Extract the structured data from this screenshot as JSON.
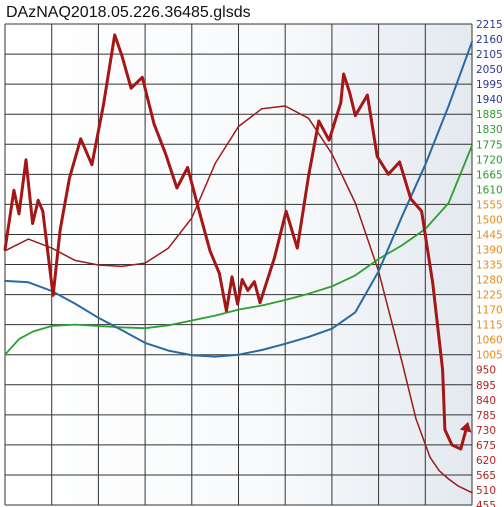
{
  "chart_data": {
    "type": "line",
    "title": "DAzNAQ2018.05.226.36485.glsds",
    "xlabel": "",
    "ylabel": "",
    "ylim": [
      455,
      2215
    ],
    "yticks": [
      2215,
      2160,
      2105,
      2050,
      1995,
      1940,
      1885,
      1830,
      1775,
      1720,
      1665,
      1610,
      1555,
      1500,
      1445,
      1390,
      1335,
      1280,
      1225,
      1170,
      1115,
      1060,
      1005,
      950,
      895,
      840,
      785,
      730,
      675,
      620,
      565,
      510,
      455
    ],
    "ytick_color_bands": [
      {
        "from": 1940,
        "to": 2215,
        "color": "#2b3a8f"
      },
      {
        "from": 1610,
        "to": 1885,
        "color": "#2e9b2e"
      },
      {
        "from": 1005,
        "to": 1555,
        "color": "#e88a1a"
      },
      {
        "from": 455,
        "to": 950,
        "color": "#b51f1f"
      }
    ],
    "xlim": [
      0,
      100
    ],
    "x_gridlines": 10,
    "grid": true,
    "legend": "none",
    "colors": {
      "price": "#a51616",
      "red_curve": "#9b1c1c",
      "blue_curve": "#2a6aa2",
      "green_curve": "#2fa02f",
      "grid": "#333333",
      "background_left": "#ffffff",
      "background_right": "#e8edf2"
    },
    "series": [
      {
        "key": "price",
        "width": 3,
        "arrow": true,
        "x": [
          0,
          1.9,
          3.0,
          4.5,
          5.9,
          7.1,
          8.1,
          10.3,
          11.8,
          13.8,
          16.2,
          18.6,
          21.1,
          23.5,
          25.0,
          27.0,
          29.4,
          31.9,
          34.4,
          36.8,
          39.1,
          41.5,
          43.9,
          45.9,
          47.4,
          48.6,
          49.8,
          50.8,
          52.0,
          53.4,
          54.6,
          57.7,
          60.2,
          62.6,
          65.0,
          67.2,
          69.4,
          71.9,
          72.5,
          73.8,
          75.0,
          77.6,
          79.7,
          82.1,
          84.5,
          86.9,
          89.2,
          91.6,
          93.7,
          94.2,
          95.7,
          97.6,
          98.8
        ],
        "y": [
          1390,
          1607,
          1520,
          1718,
          1485,
          1570,
          1530,
          1222,
          1460,
          1650,
          1795,
          1700,
          1920,
          2175,
          2100,
          1980,
          2020,
          1850,
          1740,
          1615,
          1690,
          1535,
          1385,
          1302,
          1165,
          1290,
          1190,
          1280,
          1240,
          1272,
          1195,
          1360,
          1530,
          1395,
          1660,
          1860,
          1790,
          1927,
          2032,
          1965,
          1880,
          1955,
          1730,
          1665,
          1710,
          1575,
          1530,
          1265,
          950,
          730,
          675,
          660,
          736
        ]
      },
      {
        "key": "red_curve",
        "width": 1.5,
        "arrow": false,
        "x": [
          0,
          5,
          10,
          15,
          20,
          25,
          30,
          35,
          40,
          45,
          50,
          55,
          60,
          65,
          70,
          75,
          80,
          85,
          88,
          91,
          93,
          95,
          97,
          100
        ],
        "y": [
          1385,
          1428,
          1395,
          1350,
          1333,
          1328,
          1340,
          1395,
          1505,
          1705,
          1840,
          1905,
          1915,
          1870,
          1740,
          1560,
          1310,
          980,
          770,
          630,
          580,
          550,
          525,
          500
        ]
      },
      {
        "key": "blue_curve",
        "width": 2,
        "arrow": false,
        "x": [
          0,
          5,
          10,
          15,
          20,
          25,
          30,
          35,
          40,
          45,
          50,
          55,
          60,
          65,
          70,
          75,
          80,
          85,
          90,
          95,
          100
        ],
        "y": [
          1275,
          1270,
          1238,
          1192,
          1140,
          1095,
          1048,
          1020,
          1003,
          998,
          1005,
          1022,
          1045,
          1070,
          1100,
          1160,
          1310,
          1510,
          1700,
          1915,
          2150
        ]
      },
      {
        "key": "green_curve",
        "width": 1.8,
        "arrow": false,
        "x": [
          0,
          3,
          6,
          10,
          15,
          20,
          25,
          30,
          35,
          40,
          45,
          50,
          55,
          60,
          65,
          70,
          75,
          80,
          85,
          90,
          95,
          100
        ],
        "y": [
          1005,
          1062,
          1090,
          1110,
          1115,
          1110,
          1105,
          1102,
          1112,
          1130,
          1148,
          1170,
          1185,
          1205,
          1228,
          1255,
          1295,
          1355,
          1405,
          1465,
          1560,
          1770
        ]
      }
    ]
  }
}
